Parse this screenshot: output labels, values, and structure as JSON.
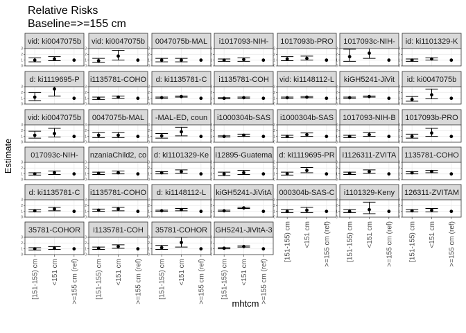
{
  "chart_data": {
    "type": "scatter",
    "title": "Relative Risks",
    "subtitle": "Baseline=>=155 cm",
    "xlabel": "mhtcm",
    "ylabel": "Estimate",
    "categories": [
      "[151-155) cm",
      "<151 cm",
      ">=155 cm (ref)"
    ],
    "y_tick_labels": [
      "0",
      "1",
      "2",
      "3"
    ],
    "ylim": [
      0,
      3
    ],
    "grid": true,
    "facets": [
      {
        "label": "vid: ki0047075b",
        "estimate": [
          1.0,
          1.2,
          1.0
        ],
        "lower": [
          0.7,
          0.9,
          1.0
        ],
        "upper": [
          1.4,
          1.6,
          1.0
        ]
      },
      {
        "label": "vid: ki0047075b",
        "estimate": [
          0.9,
          1.7,
          1.0
        ],
        "lower": [
          0.6,
          1.0,
          1.0
        ],
        "upper": [
          1.3,
          2.7,
          1.0
        ]
      },
      {
        "label": "0047075b-MAL",
        "estimate": [
          1.0,
          1.0,
          1.0
        ],
        "lower": [
          0.7,
          0.7,
          1.0
        ],
        "upper": [
          1.3,
          1.3,
          1.0
        ]
      },
      {
        "label": "i1017093-NIH-",
        "estimate": [
          1.0,
          1.1,
          1.0
        ],
        "lower": [
          0.8,
          0.8,
          1.0
        ],
        "upper": [
          1.2,
          1.4,
          1.0
        ]
      },
      {
        "label": "1017093b-PRO",
        "estimate": [
          1.2,
          1.3,
          1.0
        ],
        "lower": [
          0.9,
          1.0,
          1.0
        ],
        "upper": [
          1.6,
          1.7,
          1.0
        ]
      },
      {
        "label": "1017093c-NIH-",
        "estimate": [
          1.6,
          2.2,
          1.0
        ],
        "lower": [
          0.8,
          1.3,
          1.0
        ],
        "upper": [
          2.9,
          3.4,
          1.0
        ]
      },
      {
        "label": "id: ki1101329-K",
        "estimate": [
          1.0,
          1.2,
          1.0
        ],
        "lower": [
          0.8,
          1.0,
          1.0
        ],
        "upper": [
          1.2,
          1.4,
          1.0
        ]
      },
      {
        "label": "d: ki1119695-P",
        "estimate": [
          1.2,
          2.6,
          1.0
        ],
        "lower": [
          0.6,
          1.4,
          1.0
        ],
        "upper": [
          2.0,
          4.0,
          1.0
        ]
      },
      {
        "label": "i1135781-COHO",
        "estimate": [
          1.0,
          1.2,
          1.0
        ],
        "lower": [
          0.8,
          1.0,
          1.0
        ],
        "upper": [
          1.2,
          1.4,
          1.0
        ]
      },
      {
        "label": "d: ki1135781-C",
        "estimate": [
          1.1,
          1.3,
          1.0
        ],
        "lower": [
          1.0,
          1.2,
          1.0
        ],
        "upper": [
          1.2,
          1.4,
          1.0
        ]
      },
      {
        "label": "i1135781-COH",
        "estimate": [
          1.0,
          1.1,
          1.0
        ],
        "lower": [
          0.9,
          1.0,
          1.0
        ],
        "upper": [
          1.1,
          1.2,
          1.0
        ]
      },
      {
        "label": "vid: ki1148112-L",
        "estimate": [
          1.1,
          1.2,
          1.0
        ],
        "lower": [
          1.0,
          1.1,
          1.0
        ],
        "upper": [
          1.2,
          1.3,
          1.0
        ]
      },
      {
        "label": "kiGH5241-JiVit",
        "estimate": [
          1.1,
          1.3,
          1.0
        ],
        "lower": [
          1.0,
          1.2,
          1.0
        ],
        "upper": [
          1.2,
          1.4,
          1.0
        ]
      },
      {
        "label": "id: ki0047075b",
        "estimate": [
          0.8,
          1.6,
          1.0
        ],
        "lower": [
          0.5,
          0.9,
          1.0
        ],
        "upper": [
          1.3,
          2.6,
          1.0
        ]
      },
      {
        "label": "vid: ki0047075b",
        "estimate": [
          1.2,
          1.5,
          1.0
        ],
        "lower": [
          0.7,
          0.9,
          1.0
        ],
        "upper": [
          1.9,
          2.4,
          1.0
        ]
      },
      {
        "label": "0047075b-MAL",
        "estimate": [
          1.2,
          1.2,
          1.0
        ],
        "lower": [
          0.8,
          0.8,
          1.0
        ],
        "upper": [
          1.7,
          1.7,
          1.0
        ]
      },
      {
        "label": "-MAL-ED, coun",
        "estimate": [
          1.1,
          1.8,
          1.0
        ],
        "lower": [
          0.7,
          1.1,
          1.0
        ],
        "upper": [
          1.5,
          2.6,
          1.0
        ]
      },
      {
        "label": "i1000304b-SAS",
        "estimate": [
          1.0,
          1.2,
          1.0
        ],
        "lower": [
          0.9,
          1.0,
          1.0
        ],
        "upper": [
          1.1,
          1.4,
          1.0
        ]
      },
      {
        "label": "i1000304b-SAS",
        "estimate": [
          1.0,
          1.3,
          1.0
        ],
        "lower": [
          0.8,
          1.0,
          1.0
        ],
        "upper": [
          1.2,
          1.6,
          1.0
        ]
      },
      {
        "label": "1017093-NIH-B",
        "estimate": [
          1.0,
          1.3,
          1.0
        ],
        "lower": [
          0.8,
          1.0,
          1.0
        ],
        "upper": [
          1.2,
          1.7,
          1.0
        ]
      },
      {
        "label": "1017093b-PRO",
        "estimate": [
          1.0,
          1.6,
          1.0
        ],
        "lower": [
          0.7,
          1.0,
          1.0
        ],
        "upper": [
          1.4,
          2.4,
          1.0
        ]
      },
      {
        "label": "017093c-NIH-",
        "estimate": [
          1.0,
          1.2,
          1.0
        ],
        "lower": [
          0.8,
          0.9,
          1.0
        ],
        "upper": [
          1.2,
          1.5,
          1.0
        ]
      },
      {
        "label": "nzaniaChild2, co",
        "estimate": [
          1.1,
          1.2,
          1.0
        ],
        "lower": [
          0.9,
          1.0,
          1.0
        ],
        "upper": [
          1.3,
          1.5,
          1.0
        ]
      },
      {
        "label": "d: ki1101329-Ke",
        "estimate": [
          1.2,
          1.4,
          1.0
        ],
        "lower": [
          1.0,
          1.1,
          1.0
        ],
        "upper": [
          1.4,
          1.7,
          1.0
        ]
      },
      {
        "label": "i12895-Guatema",
        "estimate": [
          1.0,
          1.2,
          1.0
        ],
        "lower": [
          0.7,
          0.9,
          1.0
        ],
        "upper": [
          1.3,
          1.6,
          1.0
        ]
      },
      {
        "label": "d: ki1119695-PR",
        "estimate": [
          1.0,
          1.6,
          1.0
        ],
        "lower": [
          0.8,
          1.2,
          1.0
        ],
        "upper": [
          1.3,
          2.1,
          1.0
        ]
      },
      {
        "label": "i1126311-ZVITA",
        "estimate": [
          1.1,
          1.4,
          1.0
        ],
        "lower": [
          0.9,
          1.1,
          1.0
        ],
        "upper": [
          1.3,
          1.7,
          1.0
        ]
      },
      {
        "label": "1135781-COHO",
        "estimate": [
          1.2,
          1.4,
          1.0
        ],
        "lower": [
          1.0,
          1.2,
          1.0
        ],
        "upper": [
          1.4,
          1.6,
          1.0
        ]
      },
      {
        "label": "d: ki1135781-C",
        "estimate": [
          1.1,
          1.4,
          1.0
        ],
        "lower": [
          0.9,
          1.1,
          1.0
        ],
        "upper": [
          1.3,
          1.7,
          1.0
        ]
      },
      {
        "label": "i1135781-COHO",
        "estimate": [
          1.2,
          1.4,
          1.0
        ],
        "lower": [
          1.0,
          1.1,
          1.0
        ],
        "upper": [
          1.4,
          1.7,
          1.0
        ]
      },
      {
        "label": "d: ki1148112-L",
        "estimate": [
          1.1,
          1.3,
          1.0
        ],
        "lower": [
          1.0,
          1.1,
          1.0
        ],
        "upper": [
          1.2,
          1.5,
          1.0
        ]
      },
      {
        "label": "kiGH5241-JiVitA",
        "estimate": [
          1.1,
          1.6,
          1.0
        ],
        "lower": [
          1.0,
          1.5,
          1.0
        ],
        "upper": [
          1.2,
          1.7,
          1.0
        ]
      },
      {
        "label": "000304b-SAS-C",
        "estimate": [
          1.0,
          1.2,
          1.0
        ],
        "lower": [
          0.8,
          0.8,
          1.0
        ],
        "upper": [
          1.3,
          1.7,
          1.0
        ]
      },
      {
        "label": "i1101329-Keny",
        "estimate": [
          1.0,
          1.3,
          1.0
        ],
        "lower": [
          0.8,
          0.6,
          1.0
        ],
        "upper": [
          1.3,
          2.6,
          1.0
        ]
      },
      {
        "label": "126311-ZVITAM",
        "estimate": [
          1.1,
          1.2,
          1.0
        ],
        "lower": [
          0.9,
          0.9,
          1.0
        ],
        "upper": [
          1.3,
          1.5,
          1.0
        ]
      },
      {
        "label": "35781-COHOR",
        "estimate": [
          1.0,
          1.1,
          1.0
        ],
        "lower": [
          0.8,
          0.9,
          1.0
        ],
        "upper": [
          1.2,
          1.4,
          1.0
        ]
      },
      {
        "label": "i1135781-COH",
        "estimate": [
          1.1,
          1.4,
          1.0
        ],
        "lower": [
          0.9,
          1.1,
          1.0
        ],
        "upper": [
          1.3,
          1.7,
          1.0
        ]
      },
      {
        "label": "35781-COHOR",
        "estimate": [
          1.2,
          2.1,
          1.0
        ],
        "lower": [
          0.9,
          1.3,
          1.0
        ],
        "upper": [
          1.6,
          3.0,
          1.0
        ]
      },
      {
        "label": "GH5241-JiVitA-3",
        "estimate": [
          1.1,
          1.4,
          1.0
        ],
        "lower": [
          1.0,
          1.3,
          1.0
        ],
        "upper": [
          1.2,
          1.5,
          1.0
        ]
      }
    ]
  }
}
